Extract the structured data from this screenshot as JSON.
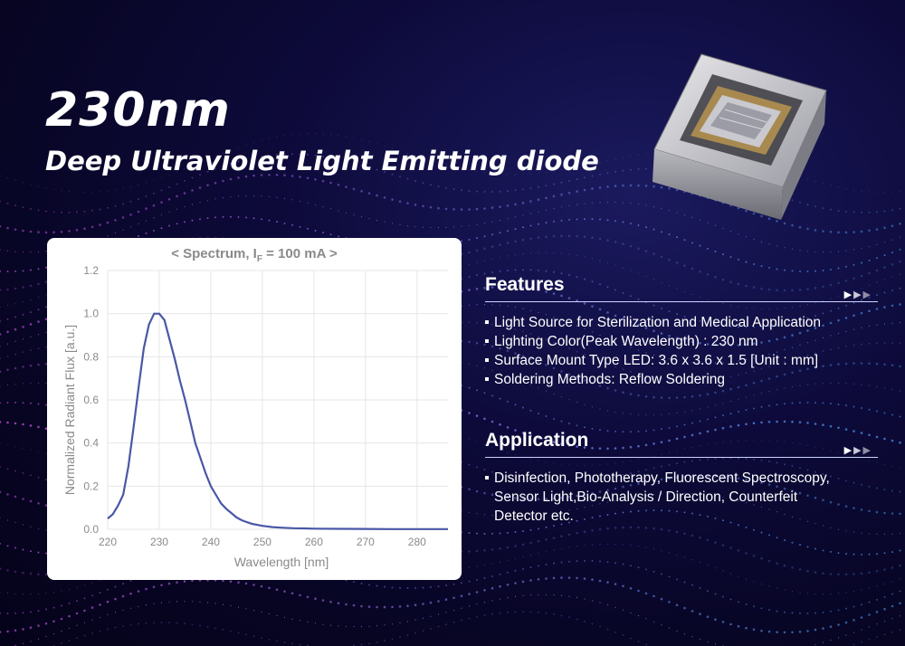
{
  "headline": {
    "wavelength": "230nm",
    "subtitle": "Deep Ultraviolet Light Emitting diode"
  },
  "features": {
    "title": "Features",
    "items": [
      "Light Source for Sterilization and Medical Application",
      "Lighting Color(Peak Wavelength) : 230 nm",
      "Surface Mount Type LED: 3.6 x 3.6 x 1.5 [Unit : mm]",
      "Soldering Methods: Reflow Soldering"
    ]
  },
  "application": {
    "title": "Application",
    "lines": [
      "Disinfection, Phototherapy, Fluorescent Spectroscopy,",
      "Sensor Light,Bio-Analysis / Direction, Counterfeit",
      "Detector etc."
    ]
  },
  "arrows_icon": "triple-chevron-right-icon",
  "colors": {
    "background": "#0d0a3a",
    "curve": "#4a57a6",
    "grid": "#e6e6e6",
    "axis_text": "#8a8a8a"
  },
  "chart_data": {
    "type": "line",
    "title_prefix": "< Spectrum, I",
    "title_subscript": "F",
    "title_suffix": " = 100 mA >",
    "xlabel": "Wavelength [nm]",
    "ylabel": "Normalized Radiant Flux [a.u.]",
    "xlim": [
      220,
      286
    ],
    "ylim": [
      0,
      1.2
    ],
    "xticks": [
      220,
      230,
      240,
      250,
      260,
      270,
      280
    ],
    "yticks": [
      0.0,
      0.2,
      0.4,
      0.6,
      0.8,
      1.0,
      1.2
    ],
    "ytick_labels": [
      "0.0",
      "0.2",
      "0.4",
      "0.6",
      "0.8",
      "1.0",
      "1.2"
    ],
    "grid": true,
    "series": [
      {
        "x": [
          220,
          221,
          222,
          223,
          224,
          225,
          226,
          227,
          228,
          229,
          230,
          231,
          232,
          233,
          234,
          235,
          236,
          237,
          238,
          239,
          240,
          241,
          242,
          243,
          244,
          245,
          246,
          247,
          248,
          250,
          252,
          254,
          256,
          258,
          260,
          265,
          270,
          275,
          280,
          286
        ],
        "y": [
          0.05,
          0.07,
          0.11,
          0.16,
          0.29,
          0.47,
          0.66,
          0.84,
          0.95,
          1.0,
          1.0,
          0.97,
          0.88,
          0.79,
          0.69,
          0.6,
          0.5,
          0.4,
          0.33,
          0.26,
          0.2,
          0.16,
          0.12,
          0.095,
          0.075,
          0.055,
          0.042,
          0.033,
          0.025,
          0.016,
          0.01,
          0.007,
          0.005,
          0.004,
          0.003,
          0.002,
          0.0015,
          0.001,
          0.001,
          0.001
        ]
      }
    ]
  }
}
